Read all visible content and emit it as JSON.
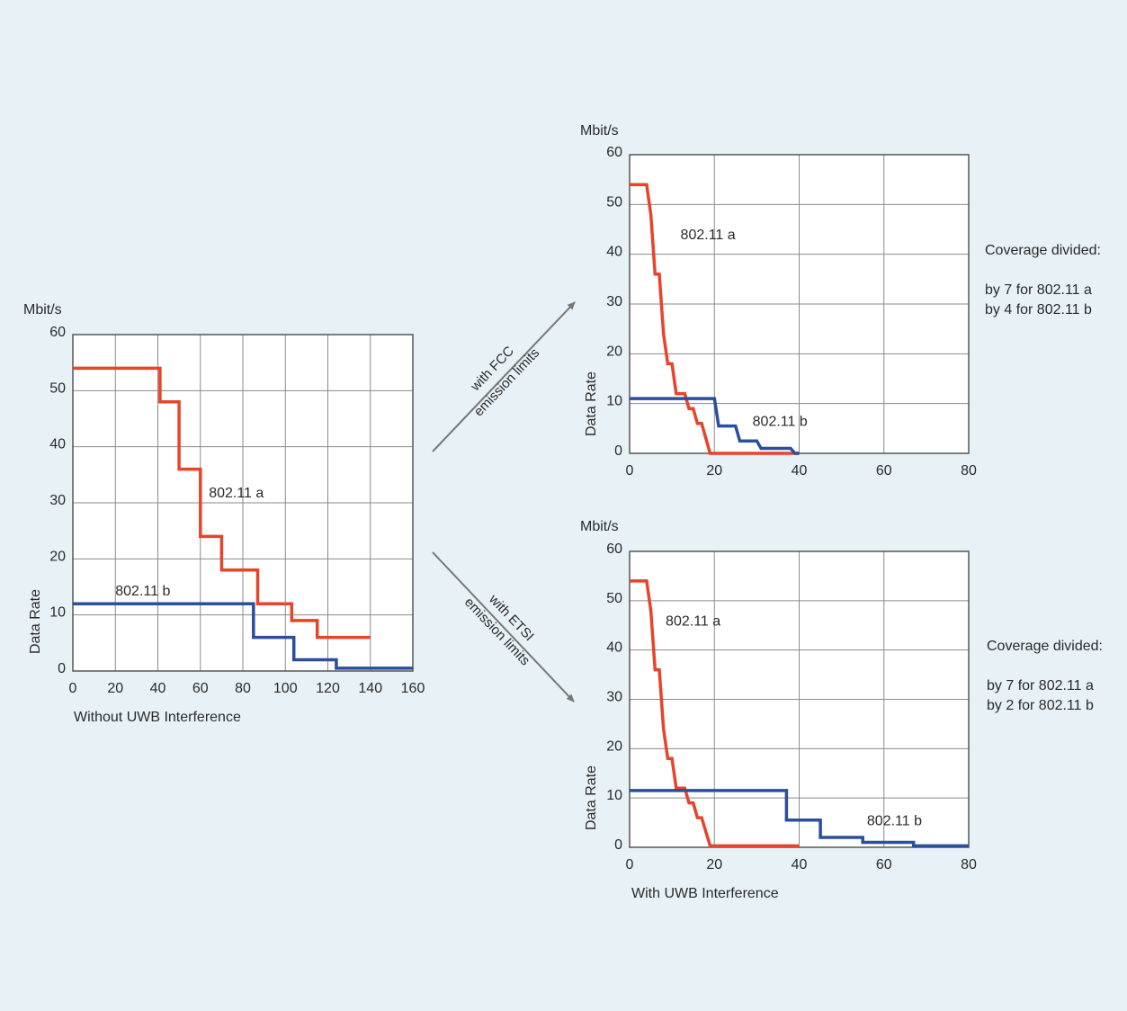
{
  "colors": {
    "background": "#e8f1f6",
    "plot_bg": "#ffffff",
    "series_a": "#e8432b",
    "series_b": "#2a4f9c",
    "grid": "#8a8a8a",
    "arrow": "#777777"
  },
  "arrows": {
    "fcc": [
      "with FCC",
      "emission limits"
    ],
    "etsi": [
      "with ETSI",
      "emission limits"
    ]
  },
  "notes": {
    "fcc": [
      "Coverage divided:",
      "by 7 for 802.11 a",
      "by 4 for 802.11 b"
    ],
    "etsi": [
      "Coverage divided:",
      "by 7 for 802.11 a",
      "by 2 for 802.11 b"
    ]
  },
  "chart_data": [
    {
      "type": "line",
      "id": "left",
      "unit": "Mbit/s",
      "ylabel": "Data Rate",
      "xlabel": "Without UWB Interference",
      "xlim": [
        0,
        160
      ],
      "ylim": [
        0,
        60
      ],
      "xticks": [
        0,
        20,
        40,
        60,
        80,
        100,
        120,
        140,
        160
      ],
      "yticks": [
        0,
        10,
        20,
        30,
        40,
        50,
        60
      ],
      "series": [
        {
          "name": "802.11 a",
          "label_at": [
            64,
            31
          ],
          "points": [
            [
              0,
              54
            ],
            [
              41,
              54
            ],
            [
              41,
              48
            ],
            [
              50,
              48
            ],
            [
              50,
              36
            ],
            [
              60,
              36
            ],
            [
              60,
              24
            ],
            [
              70,
              24
            ],
            [
              70,
              18
            ],
            [
              87,
              18
            ],
            [
              87,
              12
            ],
            [
              103,
              12
            ],
            [
              103,
              9
            ],
            [
              115,
              9
            ],
            [
              115,
              6
            ],
            [
              140,
              6
            ]
          ]
        },
        {
          "name": "802.11 b",
          "label_at": [
            20,
            13.5
          ],
          "points": [
            [
              0,
              12
            ],
            [
              85,
              12
            ],
            [
              85,
              6
            ],
            [
              104,
              6
            ],
            [
              104,
              2
            ],
            [
              124,
              2
            ],
            [
              124,
              0.5
            ],
            [
              160,
              0.5
            ]
          ]
        }
      ]
    },
    {
      "type": "line",
      "id": "fcc",
      "unit": "Mbit/s",
      "ylabel": "Data Rate",
      "xlabel": "",
      "xlim": [
        0,
        80
      ],
      "ylim": [
        0,
        60
      ],
      "xticks": [
        0,
        20,
        40,
        60,
        80
      ],
      "yticks": [
        0,
        10,
        20,
        30,
        40,
        50,
        60
      ],
      "series": [
        {
          "name": "802.11 a",
          "label_at": [
            12,
            43
          ],
          "points": [
            [
              0,
              54
            ],
            [
              4,
              54
            ],
            [
              5,
              48
            ],
            [
              6,
              36
            ],
            [
              7,
              36
            ],
            [
              8,
              24
            ],
            [
              9,
              18
            ],
            [
              10,
              18
            ],
            [
              11,
              12
            ],
            [
              13,
              12
            ],
            [
              14,
              9
            ],
            [
              15,
              9
            ],
            [
              16,
              6
            ],
            [
              17,
              6
            ],
            [
              19,
              0
            ],
            [
              40,
              0
            ]
          ]
        },
        {
          "name": "802.11 b",
          "label_at": [
            29,
            5.5
          ],
          "points": [
            [
              0,
              11
            ],
            [
              20,
              11
            ],
            [
              21,
              5.5
            ],
            [
              25,
              5.5
            ],
            [
              26,
              2.5
            ],
            [
              30,
              2.5
            ],
            [
              31,
              1
            ],
            [
              38,
              1
            ],
            [
              39,
              0
            ],
            [
              40,
              0
            ]
          ]
        }
      ]
    },
    {
      "type": "line",
      "id": "etsi",
      "unit": "Mbit/s",
      "ylabel": "Data Rate",
      "xlabel": "With UWB Interference",
      "xlim": [
        0,
        80
      ],
      "ylim": [
        0,
        60
      ],
      "xticks": [
        0,
        20,
        40,
        60,
        80
      ],
      "yticks": [
        0,
        10,
        20,
        30,
        40,
        50,
        60
      ],
      "series": [
        {
          "name": "802.11 a",
          "label_at": [
            8.5,
            45
          ],
          "points": [
            [
              0,
              54
            ],
            [
              4,
              54
            ],
            [
              5,
              48
            ],
            [
              6,
              36
            ],
            [
              7,
              36
            ],
            [
              8,
              24
            ],
            [
              9,
              18
            ],
            [
              10,
              18
            ],
            [
              11,
              12
            ],
            [
              13,
              12
            ],
            [
              14,
              9
            ],
            [
              15,
              9
            ],
            [
              16,
              6
            ],
            [
              17,
              6
            ],
            [
              19,
              0.3
            ],
            [
              40,
              0.3
            ]
          ]
        },
        {
          "name": "802.11 b",
          "label_at": [
            56,
            4.5
          ],
          "points": [
            [
              0,
              11.5
            ],
            [
              37,
              11.5
            ],
            [
              37,
              5.5
            ],
            [
              45,
              5.5
            ],
            [
              45,
              2
            ],
            [
              55,
              2
            ],
            [
              55,
              1
            ],
            [
              67,
              1
            ],
            [
              67,
              0.3
            ],
            [
              80,
              0.3
            ]
          ]
        }
      ]
    }
  ]
}
